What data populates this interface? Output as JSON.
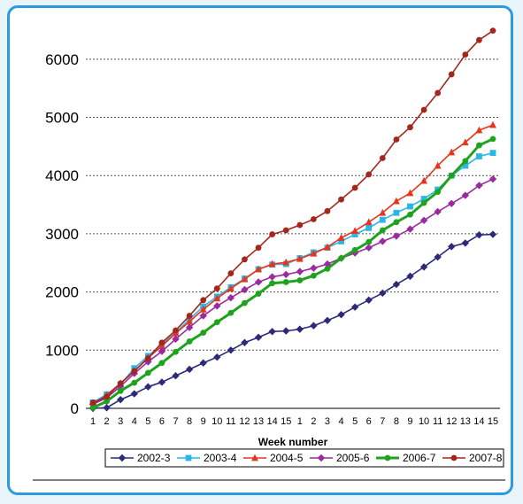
{
  "chart_data": {
    "type": "line",
    "title": "",
    "xlabel": "Week number",
    "ylabel": "",
    "ylim": [
      0,
      6500
    ],
    "yticks": [
      0,
      1000,
      2000,
      3000,
      4000,
      5000,
      6000
    ],
    "x": [
      "1",
      "2",
      "3",
      "4",
      "5",
      "6",
      "7",
      "8",
      "9",
      "10",
      "11",
      "12",
      "13",
      "14",
      "15",
      "1",
      "2",
      "3",
      "4",
      "5",
      "6",
      "7",
      "8",
      "9",
      "10",
      "11",
      "12",
      "13",
      "14",
      "15"
    ],
    "grid": "horizontal dotted",
    "legend": "bottom",
    "series": [
      {
        "name": "2002-3",
        "color": "#2e2a7a",
        "marker": "diamond",
        "values": [
          0,
          10,
          150,
          250,
          370,
          450,
          560,
          670,
          780,
          880,
          1000,
          1130,
          1220,
          1320,
          1330,
          1360,
          1420,
          1510,
          1610,
          1740,
          1860,
          1980,
          2130,
          2270,
          2430,
          2600,
          2780,
          2840,
          2980,
          2990
        ]
      },
      {
        "name": "2003-4",
        "color": "#2bb6e6",
        "marker": "square",
        "values": [
          100,
          240,
          410,
          690,
          900,
          1100,
          1300,
          1530,
          1750,
          1920,
          2080,
          2230,
          2390,
          2470,
          2480,
          2580,
          2680,
          2760,
          2870,
          2990,
          3100,
          3240,
          3360,
          3470,
          3600,
          3760,
          4000,
          4170,
          4330,
          4390
        ]
      },
      {
        "name": "2004-5",
        "color": "#e8341c",
        "marker": "triangle",
        "values": [
          60,
          230,
          430,
          640,
          870,
          1070,
          1290,
          1490,
          1700,
          1890,
          2060,
          2220,
          2390,
          2480,
          2510,
          2570,
          2660,
          2770,
          2930,
          3050,
          3200,
          3360,
          3560,
          3700,
          3910,
          4170,
          4400,
          4570,
          4780,
          4870
        ]
      },
      {
        "name": "2005-6",
        "color": "#9a2aa0",
        "marker": "diamond",
        "values": [
          70,
          180,
          380,
          600,
          800,
          980,
          1190,
          1390,
          1590,
          1760,
          1900,
          2040,
          2170,
          2260,
          2300,
          2350,
          2410,
          2480,
          2580,
          2670,
          2760,
          2870,
          2960,
          3080,
          3230,
          3380,
          3520,
          3660,
          3830,
          3940
        ]
      },
      {
        "name": "2006-7",
        "color": "#1fa31f",
        "marker": "circle",
        "values": [
          10,
          120,
          300,
          440,
          610,
          780,
          970,
          1150,
          1300,
          1480,
          1640,
          1810,
          1970,
          2150,
          2170,
          2200,
          2280,
          2400,
          2580,
          2720,
          2860,
          3060,
          3200,
          3330,
          3530,
          3720,
          4000,
          4250,
          4520,
          4630
        ]
      },
      {
        "name": "2007-8",
        "color": "#a3271d",
        "marker": "circle",
        "values": [
          100,
          200,
          430,
          640,
          860,
          1130,
          1340,
          1590,
          1860,
          2060,
          2320,
          2560,
          2760,
          2990,
          3060,
          3150,
          3250,
          3390,
          3590,
          3790,
          4020,
          4300,
          4620,
          4830,
          5130,
          5420,
          5740,
          6080,
          6330,
          6490
        ]
      }
    ]
  }
}
